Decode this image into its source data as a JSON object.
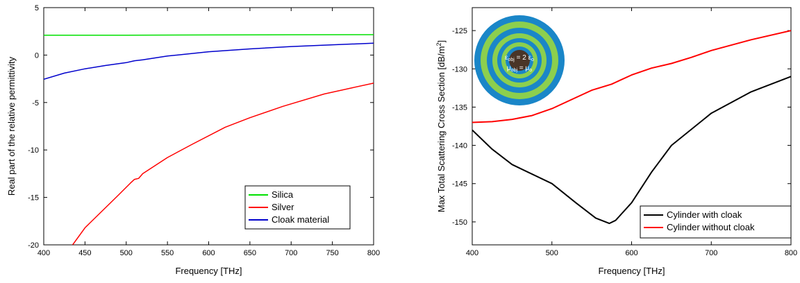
{
  "chart_data": [
    {
      "type": "line",
      "title": "",
      "xlabel": "Frequency [THz]",
      "ylabel": "Real part of the relative permittivity",
      "xlim": [
        400,
        800
      ],
      "ylim": [
        -20,
        5
      ],
      "xticks": [
        400,
        450,
        500,
        550,
        600,
        650,
        700,
        750,
        800
      ],
      "yticks": [
        5,
        0,
        -5,
        -10,
        -15,
        -20
      ],
      "legend_position": "bottom-right",
      "series": [
        {
          "name": "Silica",
          "color": "#00e000",
          "x": [
            400,
            500,
            600,
            700,
            800
          ],
          "y": [
            2.1,
            2.1,
            2.12,
            2.14,
            2.15
          ]
        },
        {
          "name": "Silver",
          "color": "#ff0000",
          "x": [
            435,
            450,
            470,
            490,
            505,
            510,
            515,
            520,
            550,
            580,
            620,
            650,
            690,
            740,
            800
          ],
          "y": [
            -20,
            -18.2,
            -16.5,
            -14.8,
            -13.5,
            -13.1,
            -13.0,
            -12.5,
            -10.8,
            -9.4,
            -7.6,
            -6.6,
            -5.4,
            -4.1,
            -2.95
          ]
        },
        {
          "name": "Cloak material",
          "color": "#0000cc",
          "x": [
            400,
            425,
            450,
            475,
            500,
            510,
            520,
            550,
            600,
            650,
            700,
            750,
            800
          ],
          "y": [
            -2.55,
            -1.9,
            -1.45,
            -1.1,
            -0.8,
            -0.6,
            -0.5,
            -0.1,
            0.35,
            0.65,
            0.9,
            1.08,
            1.25
          ]
        }
      ]
    },
    {
      "type": "line",
      "title": "",
      "xlabel": "Frequency [THz]",
      "ylabel": "Max Total Scattering Cross Section [dB/m",
      "ylabel_superscript": "2",
      "ylabel_close": "]",
      "xlim": [
        400,
        800
      ],
      "ylim": [
        -153,
        -122
      ],
      "xticks": [
        400,
        500,
        600,
        700,
        800
      ],
      "yticks": [
        -125,
        -130,
        -135,
        -140,
        -145,
        -150
      ],
      "legend_position": "bottom-right",
      "series": [
        {
          "name": "Cylinder with cloak",
          "color": "#000000",
          "x": [
            400,
            425,
            450,
            500,
            530,
            555,
            572,
            580,
            600,
            625,
            650,
            700,
            750,
            800
          ],
          "y": [
            -138,
            -140.5,
            -142.5,
            -145,
            -147.5,
            -149.5,
            -150.2,
            -149.8,
            -147.5,
            -143.5,
            -140,
            -135.8,
            -133,
            -131
          ]
        },
        {
          "name": "Cylinder without cloak",
          "color": "#ff0000",
          "x": [
            400,
            425,
            450,
            475,
            500,
            525,
            550,
            575,
            600,
            625,
            650,
            675,
            700,
            750,
            800
          ],
          "y": [
            -137,
            -136.9,
            -136.6,
            -136.1,
            -135.2,
            -134,
            -132.8,
            -132,
            -130.8,
            -129.9,
            -129.3,
            -128.5,
            -127.6,
            -126.2,
            -125
          ]
        }
      ],
      "inset": {
        "line1": "ε",
        "line1_sub": "obj",
        "line1_rest": " = 2 ε",
        "line1_sub2": "o",
        "line2": "μ",
        "line2_sub": "obj",
        "line2_rest": " = μ",
        "line2_sub2": "o",
        "ring_colors": [
          "#1a86c8",
          "#8ccf4e",
          "#1a86c8",
          "#8ccf4e",
          "#1a86c8",
          "#8ccf4e",
          "#1a86c8",
          "#4a3528"
        ]
      }
    }
  ]
}
